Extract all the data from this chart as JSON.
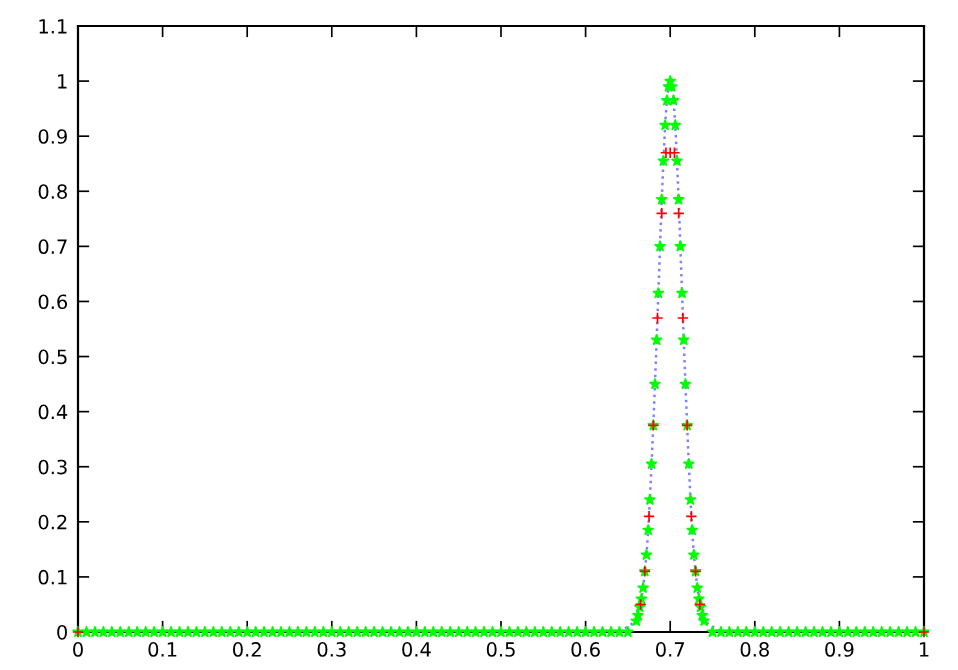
{
  "chart_data": {
    "type": "scatter",
    "xlim": [
      0,
      1
    ],
    "xticks": [
      0,
      0.1,
      0.2,
      0.3,
      0.4,
      0.5,
      0.6,
      0.7,
      0.8,
      0.9,
      1
    ],
    "ylim": [
      0,
      1.1
    ],
    "yticks": [
      0,
      0.1,
      0.2,
      0.3,
      0.4,
      0.5,
      0.6,
      0.7,
      0.8,
      0.9,
      1,
      1.1
    ],
    "grid": false,
    "legend": false,
    "series": [
      {
        "marker": "cross",
        "color": "#ff0000",
        "x": [
          0,
          0.665,
          0.67,
          0.675,
          0.68,
          0.685,
          0.69,
          0.695,
          0.7,
          0.705,
          0.71,
          0.715,
          0.72,
          0.725,
          0.73,
          0.735,
          1
        ],
        "values": [
          0,
          0.05,
          0.11,
          0.21,
          0.375,
          0.57,
          0.76,
          0.87,
          0.87,
          0.87,
          0.76,
          0.57,
          0.375,
          0.21,
          0.11,
          0.05,
          0
        ]
      },
      {
        "marker": "star",
        "color": "#00ff00",
        "x": [
          0,
          0.01,
          0.02,
          0.03,
          0.04,
          0.05,
          0.06,
          0.07,
          0.08,
          0.09,
          0.1,
          0.11,
          0.12,
          0.13,
          0.14,
          0.15,
          0.16,
          0.17,
          0.18,
          0.19,
          0.2,
          0.21,
          0.22,
          0.23,
          0.24,
          0.25,
          0.26,
          0.27,
          0.28,
          0.29,
          0.3,
          0.31,
          0.32,
          0.33,
          0.34,
          0.35,
          0.36,
          0.37,
          0.38,
          0.39,
          0.4,
          0.41,
          0.42,
          0.43,
          0.44,
          0.45,
          0.46,
          0.47,
          0.48,
          0.49,
          0.5,
          0.51,
          0.52,
          0.53,
          0.54,
          0.55,
          0.56,
          0.57,
          0.58,
          0.59,
          0.6,
          0.61,
          0.62,
          0.63,
          0.64,
          0.65,
          0.66,
          0.662,
          0.664,
          0.666,
          0.668,
          0.67,
          0.672,
          0.674,
          0.676,
          0.678,
          0.68,
          0.682,
          0.684,
          0.686,
          0.688,
          0.69,
          0.692,
          0.694,
          0.696,
          0.698,
          0.7,
          0.702,
          0.704,
          0.706,
          0.708,
          0.71,
          0.712,
          0.714,
          0.716,
          0.718,
          0.72,
          0.722,
          0.724,
          0.726,
          0.728,
          0.73,
          0.732,
          0.734,
          0.736,
          0.738,
          0.74,
          0.75,
          0.76,
          0.77,
          0.78,
          0.79,
          0.8,
          0.81,
          0.82,
          0.83,
          0.84,
          0.85,
          0.86,
          0.87,
          0.88,
          0.89,
          0.9,
          0.91,
          0.92,
          0.93,
          0.94,
          0.95,
          0.96,
          0.97,
          0.98,
          0.99,
          1
        ],
        "values": [
          0,
          0,
          0,
          0,
          0,
          0,
          0,
          0,
          0,
          0,
          0,
          0,
          0,
          0,
          0,
          0,
          0,
          0,
          0,
          0,
          0,
          0,
          0,
          0,
          0,
          0,
          0,
          0,
          0,
          0,
          0,
          0,
          0,
          0,
          0,
          0,
          0,
          0,
          0,
          0,
          0,
          0,
          0,
          0,
          0,
          0,
          0,
          0,
          0,
          0,
          0,
          0,
          0,
          0,
          0,
          0,
          0,
          0,
          0,
          0,
          0,
          0,
          0,
          0,
          0,
          0,
          0.02,
          0.03,
          0.045,
          0.06,
          0.08,
          0.11,
          0.14,
          0.185,
          0.24,
          0.305,
          0.375,
          0.45,
          0.53,
          0.615,
          0.7,
          0.785,
          0.855,
          0.92,
          0.965,
          0.99,
          1.0,
          0.99,
          0.965,
          0.92,
          0.855,
          0.785,
          0.7,
          0.615,
          0.53,
          0.45,
          0.375,
          0.305,
          0.24,
          0.185,
          0.14,
          0.11,
          0.08,
          0.06,
          0.045,
          0.03,
          0.02,
          0,
          0,
          0,
          0,
          0,
          0,
          0,
          0,
          0,
          0,
          0,
          0,
          0,
          0,
          0,
          0,
          0,
          0,
          0,
          0,
          0,
          0,
          0,
          0,
          0,
          0
        ]
      },
      {
        "type": "line",
        "marker": "none",
        "line_style": "dotted",
        "color": "#8080ff",
        "x": [
          0.64,
          0.66,
          0.662,
          0.664,
          0.666,
          0.668,
          0.67,
          0.672,
          0.674,
          0.676,
          0.678,
          0.68,
          0.682,
          0.684,
          0.686,
          0.688,
          0.69,
          0.692,
          0.694,
          0.696,
          0.698,
          0.7,
          0.702,
          0.704,
          0.706,
          0.708,
          0.71,
          0.712,
          0.714,
          0.716,
          0.718,
          0.72,
          0.722,
          0.724,
          0.726,
          0.728,
          0.73,
          0.732,
          0.734,
          0.736,
          0.738,
          0.74,
          0.76
        ],
        "values": [
          0,
          0.02,
          0.03,
          0.045,
          0.06,
          0.08,
          0.11,
          0.14,
          0.185,
          0.24,
          0.305,
          0.375,
          0.45,
          0.53,
          0.615,
          0.7,
          0.785,
          0.855,
          0.92,
          0.965,
          0.99,
          1.0,
          0.99,
          0.965,
          0.92,
          0.855,
          0.785,
          0.7,
          0.615,
          0.53,
          0.45,
          0.375,
          0.305,
          0.24,
          0.185,
          0.14,
          0.11,
          0.08,
          0.06,
          0.045,
          0.03,
          0.02,
          0
        ]
      }
    ]
  }
}
